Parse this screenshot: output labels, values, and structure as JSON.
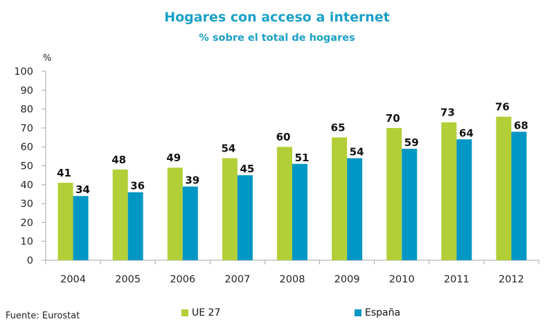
{
  "chart_data": {
    "type": "bar",
    "title": "Hogares con acceso a internet",
    "subtitle": "%  sobre el total de hogares",
    "xlabel": "",
    "ylabel": "%",
    "ylim": [
      0,
      100
    ],
    "yticks": [
      0,
      10,
      20,
      30,
      40,
      50,
      60,
      70,
      80,
      90,
      100
    ],
    "categories": [
      "2004",
      "2005",
      "2006",
      "2007",
      "2008",
      "2009",
      "2010",
      "2011",
      "2012"
    ],
    "series": [
      {
        "name": "UE 27",
        "color": "#b2cf38",
        "values": [
          41,
          48,
          49,
          54,
          60,
          65,
          70,
          73,
          76
        ]
      },
      {
        "name": "España",
        "color": "#0097c4",
        "values": [
          34,
          36,
          39,
          45,
          51,
          54,
          59,
          64,
          68
        ]
      }
    ],
    "grid": false,
    "data_labels": true,
    "legend_position": "bottom"
  },
  "source": "Fuente: Eurostat"
}
